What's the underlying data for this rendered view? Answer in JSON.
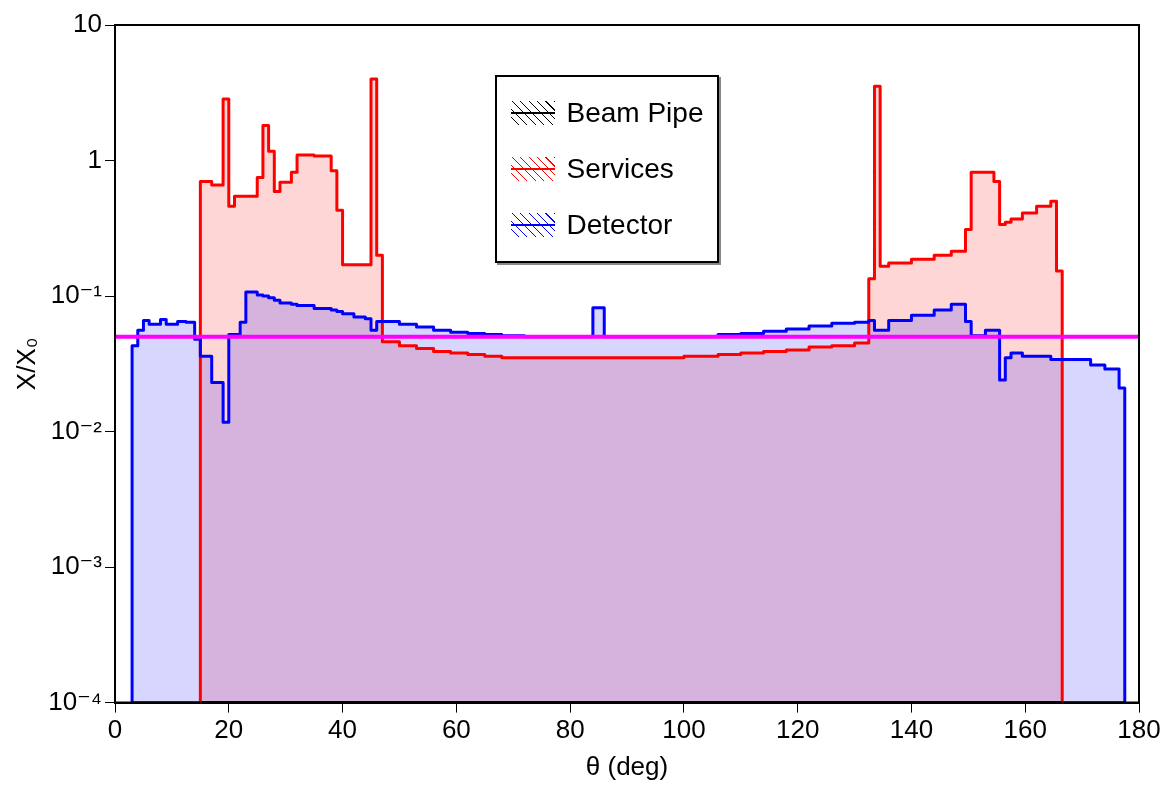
{
  "chart_data": {
    "type": "histogram",
    "xlabel": "θ (deg)",
    "ylabel": "X/X₀",
    "bins": [
      3,
      4,
      5,
      6,
      8,
      9,
      11,
      12.5,
      14,
      15,
      17,
      19,
      20,
      21,
      22,
      23,
      25,
      26,
      27,
      28,
      29,
      31,
      32,
      35,
      38,
      39,
      40,
      42,
      44,
      45,
      46,
      47,
      50,
      53,
      56,
      59,
      62,
      65,
      68,
      72,
      84,
      86,
      100,
      106,
      110,
      114,
      118,
      122,
      126,
      130,
      132.5,
      133.5,
      134.5,
      136,
      140,
      144,
      147,
      149.5,
      150.5,
      153,
      154.5,
      155.5,
      156.5,
      157.5,
      159.5,
      162,
      164.5,
      165.5,
      166.5,
      171.5,
      174,
      176.5,
      177.5
    ],
    "series": [
      {
        "name": "Beam Pipe",
        "color": "#000000",
        "values": [
          null,
          null,
          null,
          null,
          null,
          null,
          null,
          null,
          null,
          null,
          null,
          null,
          null,
          null,
          null,
          null,
          null,
          null,
          null,
          null,
          null,
          null,
          null,
          null,
          null,
          null,
          null,
          null,
          null,
          null,
          null,
          null,
          null,
          null,
          null,
          null,
          null,
          null,
          null,
          null,
          null,
          null,
          null,
          null,
          null,
          null,
          null,
          null,
          null,
          null,
          null,
          null,
          null,
          null,
          null,
          null,
          null,
          null,
          null,
          null,
          null,
          null,
          null,
          null,
          null,
          null,
          null,
          null,
          null,
          null,
          null,
          null
        ]
      },
      {
        "name": "Services",
        "color": "#ff0000",
        "values": [
          null,
          null,
          null,
          null,
          null,
          null,
          null,
          null,
          null,
          0.7,
          0.66,
          2.85,
          0.46,
          0.545,
          0.545,
          0.545,
          0.75,
          1.81,
          1.17,
          0.59,
          0.69,
          0.82,
          1.1,
          1.08,
          0.84,
          0.43,
          0.17,
          0.17,
          0.17,
          4.0,
          0.2,
          0.046,
          0.043,
          0.041,
          0.039,
          0.038,
          0.037,
          0.036,
          0.035,
          0.035,
          0.035,
          0.035,
          0.036,
          0.037,
          0.038,
          0.039,
          0.04,
          0.042,
          0.043,
          0.045,
          0.134,
          3.53,
          0.166,
          0.175,
          0.187,
          0.2,
          0.214,
          0.31,
          0.82,
          0.82,
          0.7,
          0.337,
          0.35,
          0.37,
          0.41,
          0.46,
          0.5,
          0.153,
          null,
          null,
          null,
          null
        ]
      },
      {
        "name": "Detector",
        "color": "#0000ff",
        "values": [
          0.043,
          0.056,
          0.066,
          0.062,
          0.067,
          0.062,
          0.065,
          0.064,
          0.048,
          0.036,
          0.023,
          0.0117,
          0.052,
          0.052,
          0.064,
          0.107,
          0.102,
          0.1,
          0.097,
          0.093,
          0.089,
          0.087,
          0.085,
          0.081,
          0.079,
          0.077,
          0.074,
          0.07,
          0.068,
          0.056,
          0.065,
          0.065,
          0.062,
          0.059,
          0.056,
          0.054,
          0.053,
          0.052,
          0.051,
          0.05,
          0.082,
          0.05,
          0.05,
          0.052,
          0.053,
          0.055,
          0.057,
          0.06,
          0.063,
          0.064,
          0.066,
          0.056,
          0.056,
          0.066,
          0.072,
          0.079,
          0.087,
          0.065,
          0.051,
          0.056,
          0.056,
          0.024,
          0.035,
          0.038,
          0.036,
          0.036,
          0.034,
          0.034,
          0.034,
          0.031,
          0.029,
          0.021
        ]
      }
    ],
    "log": "y",
    "xlim": [
      0,
      180
    ],
    "xticks": [
      0,
      20,
      40,
      60,
      80,
      100,
      120,
      140,
      160,
      180
    ],
    "ylim": [
      0.0001,
      10
    ],
    "yticks": [
      {
        "value": 0.0001,
        "label": "10⁻⁴"
      },
      {
        "value": 0.001,
        "label": "10⁻³"
      },
      {
        "value": 0.01,
        "label": "10⁻²"
      },
      {
        "value": 0.1,
        "label": "10⁻¹"
      },
      1,
      10
    ],
    "ref_lines": [
      {
        "axis": "y",
        "value": 0.05,
        "color": "#ff00ff"
      }
    ],
    "legend": "top"
  }
}
